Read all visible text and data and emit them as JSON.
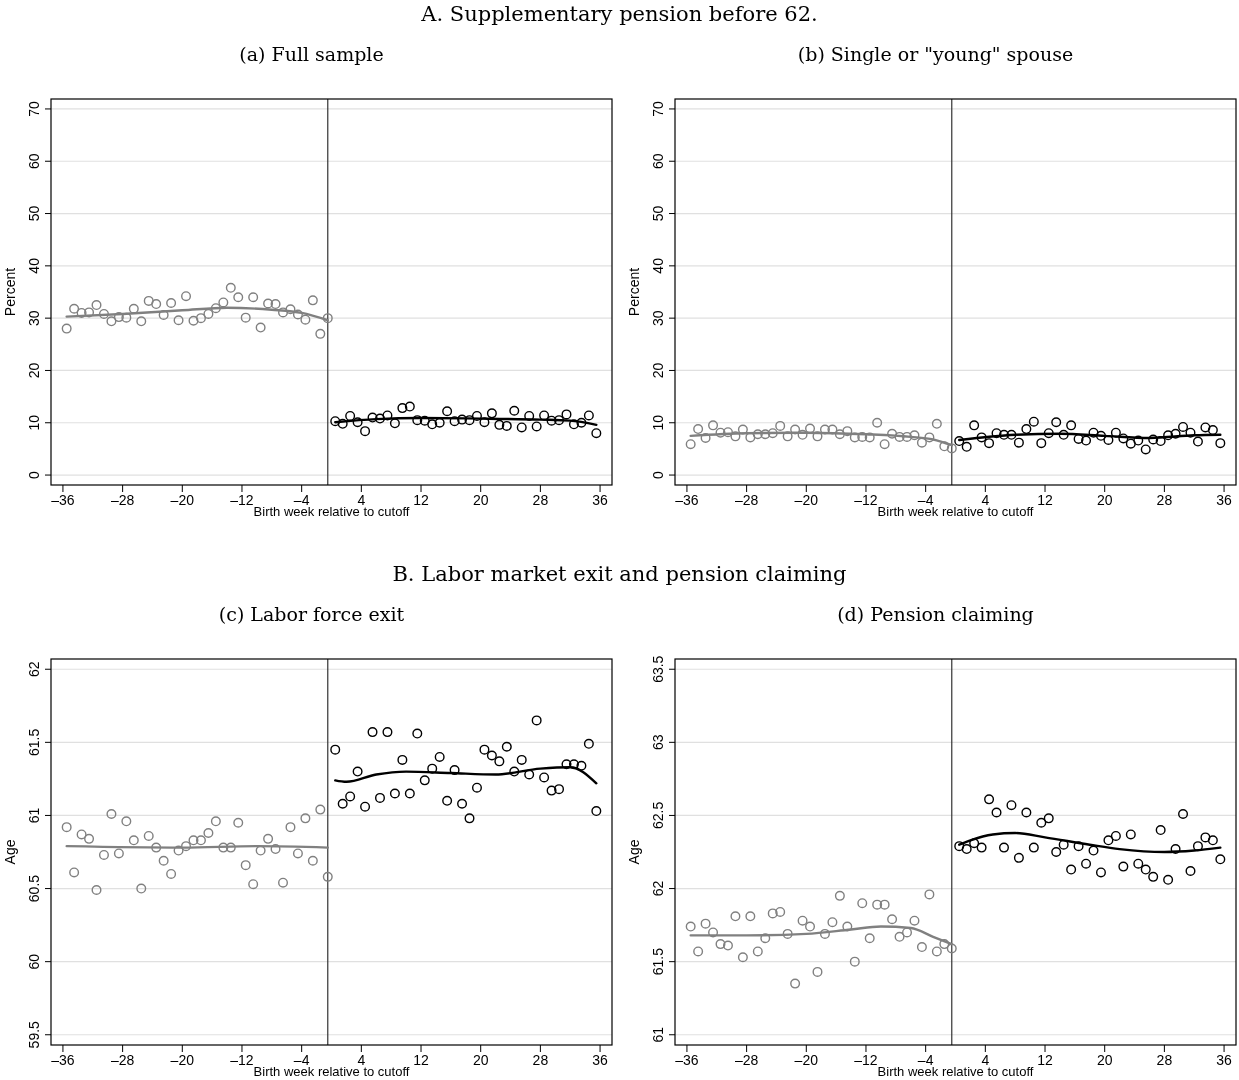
{
  "chart_data": [
    {
      "type": "scatter",
      "title": "A. Supplementary pension before 62.",
      "subtitle": "(a) Full sample",
      "xlabel": "Birth week relative to cutoff",
      "ylabel": "Percent",
      "xlim": [
        -37.6,
        37.6
      ],
      "ylim": [
        -1.9,
        71.9
      ],
      "xticks": [
        {
          "value": -36,
          "label": "–36"
        },
        {
          "value": -28,
          "label": "–28"
        },
        {
          "value": -20,
          "label": "–20"
        },
        {
          "value": -12,
          "label": "–12"
        },
        {
          "value": -4,
          "label": "–4"
        },
        4,
        12,
        20,
        28,
        36
      ],
      "yticks": [
        0,
        10,
        20,
        30,
        40,
        50,
        60,
        70
      ],
      "grid": "y",
      "marker": "circle",
      "ref_lines": [
        {
          "axis": "x",
          "value": -0.5,
          "color": "#333333"
        }
      ],
      "series": [
        {
          "type": "scatter",
          "color": "#808080",
          "x": [
            -35.5,
            -34.5,
            -33.5,
            -32.5,
            -31.5,
            -30.5,
            -29.5,
            -28.5,
            -27.5,
            -26.5,
            -25.5,
            -24.5,
            -23.5,
            -22.5,
            -21.5,
            -20.5,
            -19.5,
            -18.5,
            -17.5,
            -16.5,
            -15.5,
            -14.5,
            -13.5,
            -12.5,
            -11.5,
            -10.5,
            -9.5,
            -8.5,
            -7.5,
            -6.5,
            -5.5,
            -4.5,
            -3.5,
            -2.5,
            -1.5,
            -0.5
          ],
          "values": [
            28,
            31.8,
            31,
            31.1,
            32.5,
            30.8,
            29.4,
            30.2,
            30.1,
            31.8,
            29.4,
            33.3,
            32.7,
            30.6,
            32.9,
            29.6,
            34.2,
            29.5,
            30,
            30.8,
            31.9,
            33,
            35.8,
            34,
            30.1,
            34,
            28.2,
            32.8,
            32.7,
            31.1,
            31.7,
            30.7,
            29.7,
            33.4,
            27,
            30
          ]
        },
        {
          "color": "#000000",
          "x": [
            0.5,
            1.5,
            2.5,
            3.5,
            4.5,
            5.5,
            6.5,
            7.5,
            8.5,
            9.5,
            10.5,
            11.5,
            12.5,
            13.5,
            14.5,
            15.5,
            16.5,
            17.5,
            18.5,
            19.5,
            20.5,
            21.5,
            22.5,
            23.5,
            24.5,
            25.5,
            26.5,
            27.5,
            28.5,
            29.5,
            30.5,
            31.5,
            32.5,
            33.5,
            34.5,
            35.5
          ],
          "values": [
            10.3,
            9.8,
            11.3,
            10.1,
            8.4,
            11,
            10.8,
            11.4,
            9.9,
            12.8,
            13.1,
            10.5,
            10.4,
            9.7,
            10,
            12.2,
            10.3,
            10.6,
            10.5,
            11.3,
            10.1,
            11.8,
            9.6,
            9.4,
            12.3,
            9.1,
            11.3,
            9.3,
            11.4,
            10.4,
            10.5,
            11.6,
            9.7,
            10,
            11.4,
            8
          ]
        },
        {
          "type": "line",
          "marker": "none",
          "color": "#808080",
          "x": [
            -35.5,
            -28,
            -20,
            -14,
            -8,
            -4,
            -0.5
          ],
          "values": [
            30.3,
            30.8,
            31.5,
            32,
            31.6,
            31,
            29.6
          ]
        },
        {
          "type": "line",
          "marker": "none",
          "color": "#000000",
          "x": [
            0.5,
            6,
            12,
            20,
            28,
            32,
            35.5
          ],
          "values": [
            10.1,
            10.7,
            10.9,
            10.8,
            10.6,
            10.4,
            9.6
          ]
        }
      ]
    },
    {
      "type": "scatter",
      "subtitle": "(b) Single or \"young\" spouse",
      "xlabel": "Birth week relative to cutoff",
      "ylabel": "Percent",
      "xlim": [
        -37.6,
        37.6
      ],
      "ylim": [
        -1.9,
        71.9
      ],
      "xticks": [
        {
          "value": -36,
          "label": "–36"
        },
        {
          "value": -28,
          "label": "–28"
        },
        {
          "value": -20,
          "label": "–20"
        },
        {
          "value": -12,
          "label": "–12"
        },
        {
          "value": -4,
          "label": "–4"
        },
        4,
        12,
        20,
        28,
        36
      ],
      "yticks": [
        0,
        10,
        20,
        30,
        40,
        50,
        60,
        70
      ],
      "grid": "y",
      "marker": "circle",
      "ref_lines": [
        {
          "axis": "x",
          "value": -0.5,
          "color": "#333333"
        }
      ],
      "series": [
        {
          "type": "scatter",
          "color": "#808080",
          "x": [
            -35.5,
            -34.5,
            -33.5,
            -32.5,
            -31.5,
            -30.5,
            -29.5,
            -28.5,
            -27.5,
            -26.5,
            -25.5,
            -24.5,
            -23.5,
            -22.5,
            -21.5,
            -20.5,
            -19.5,
            -18.5,
            -17.5,
            -16.5,
            -15.5,
            -14.5,
            -13.5,
            -12.5,
            -11.5,
            -10.5,
            -9.5,
            -8.5,
            -7.5,
            -6.5,
            -5.5,
            -4.5,
            -3.5,
            -2.5,
            -1.5,
            -0.5
          ],
          "values": [
            5.9,
            8.8,
            7.1,
            9.5,
            8.1,
            8.2,
            7.4,
            8.7,
            7.2,
            7.8,
            7.8,
            8,
            9.4,
            7.4,
            8.7,
            7.7,
            8.9,
            7.4,
            8.7,
            8.7,
            7.8,
            8.4,
            7.2,
            7.3,
            7.2,
            10,
            5.9,
            7.9,
            7.3,
            7.3,
            7.6,
            6.2,
            7.2,
            9.8,
            5.5,
            5.1
          ]
        },
        {
          "color": "#000000",
          "x": [
            0.5,
            1.5,
            2.5,
            3.5,
            4.5,
            5.5,
            6.5,
            7.5,
            8.5,
            9.5,
            10.5,
            11.5,
            12.5,
            13.5,
            14.5,
            15.5,
            16.5,
            17.5,
            18.5,
            19.5,
            20.5,
            21.5,
            22.5,
            23.5,
            24.5,
            25.5,
            26.5,
            27.5,
            28.5,
            29.5,
            30.5,
            31.5,
            32.5,
            33.5,
            34.5,
            35.5
          ],
          "values": [
            6.5,
            5.4,
            9.5,
            7.2,
            6.1,
            8,
            7.7,
            7.7,
            6.2,
            8.8,
            10.2,
            6.1,
            8,
            10.1,
            7.7,
            9.5,
            6.9,
            6.6,
            8.1,
            7.5,
            6.7,
            8.1,
            7,
            6,
            6.6,
            4.9,
            6.8,
            6.5,
            7.6,
            7.9,
            9.2,
            8.1,
            6.4,
            9.1,
            8.6,
            6.1
          ]
        },
        {
          "type": "line",
          "marker": "none",
          "color": "#808080",
          "x": [
            -35.5,
            -28,
            -20,
            -12,
            -6,
            -3,
            -0.5
          ],
          "values": [
            7.5,
            8,
            8.1,
            7.8,
            7.3,
            6.8,
            5.7
          ]
        },
        {
          "type": "line",
          "marker": "none",
          "color": "#000000",
          "x": [
            0.5,
            8,
            14,
            20,
            26,
            32,
            35.5
          ],
          "values": [
            6.7,
            7.7,
            7.9,
            7.5,
            7.1,
            7.6,
            7.7
          ]
        }
      ]
    },
    {
      "type": "scatter",
      "title": "B. Labor market exit and pension claiming",
      "subtitle": "(c) Labor force exit",
      "xlabel": "Birth week relative to cutoff",
      "ylabel": "Age",
      "xlim": [
        -37.6,
        37.6
      ],
      "ylim": [
        59.43,
        62.07
      ],
      "xticks": [
        {
          "value": -36,
          "label": "–36"
        },
        {
          "value": -28,
          "label": "–28"
        },
        {
          "value": -20,
          "label": "–20"
        },
        {
          "value": -12,
          "label": "–12"
        },
        {
          "value": -4,
          "label": "–4"
        },
        4,
        12,
        20,
        28,
        36
      ],
      "yticks": [
        59.5,
        60,
        60.5,
        61,
        61.5,
        62
      ],
      "grid": "y",
      "marker": "circle",
      "ref_lines": [
        {
          "axis": "x",
          "value": -0.5,
          "color": "#333333"
        }
      ],
      "series": [
        {
          "type": "scatter",
          "color": "#808080",
          "x": [
            -35.5,
            -34.5,
            -33.5,
            -32.5,
            -31.5,
            -30.5,
            -29.5,
            -28.5,
            -27.5,
            -26.5,
            -25.5,
            -24.5,
            -23.5,
            -22.5,
            -21.5,
            -20.5,
            -19.5,
            -18.5,
            -17.5,
            -16.5,
            -15.5,
            -14.5,
            -13.5,
            -12.5,
            -11.5,
            -10.5,
            -9.5,
            -8.5,
            -7.5,
            -6.5,
            -5.5,
            -4.5,
            -3.5,
            -2.5,
            -1.5,
            -0.5
          ],
          "values": [
            60.92,
            60.61,
            60.87,
            60.84,
            60.49,
            60.73,
            61.01,
            60.74,
            60.96,
            60.83,
            60.5,
            60.86,
            60.78,
            60.69,
            60.6,
            60.76,
            60.79,
            60.83,
            60.83,
            60.88,
            60.96,
            60.78,
            60.78,
            60.95,
            60.66,
            60.53,
            60.76,
            60.84,
            60.77,
            60.54,
            60.92,
            60.74,
            60.98,
            60.69,
            61.04,
            60.58
          ]
        },
        {
          "color": "#000000",
          "x": [
            0.5,
            1.5,
            2.5,
            3.5,
            4.5,
            5.5,
            6.5,
            7.5,
            8.5,
            9.5,
            10.5,
            11.5,
            12.5,
            13.5,
            14.5,
            15.5,
            16.5,
            17.5,
            18.5,
            19.5,
            20.5,
            21.5,
            22.5,
            23.5,
            24.5,
            25.5,
            26.5,
            27.5,
            28.5,
            29.5,
            30.5,
            31.5,
            32.5,
            33.5,
            34.5,
            35.5
          ],
          "values": [
            61.45,
            61.08,
            61.13,
            61.3,
            61.06,
            61.57,
            61.12,
            61.57,
            61.15,
            61.38,
            61.15,
            61.56,
            61.24,
            61.32,
            61.4,
            61.1,
            61.31,
            61.08,
            60.98,
            61.19,
            61.45,
            61.41,
            61.37,
            61.47,
            61.3,
            61.38,
            61.28,
            61.65,
            61.26,
            61.17,
            61.18,
            61.35,
            61.35,
            61.34,
            61.49,
            61.03
          ]
        },
        {
          "type": "line",
          "marker": "none",
          "color": "#808080",
          "x": [
            -35.5,
            -20,
            -10,
            -0.5
          ],
          "values": [
            60.79,
            60.78,
            60.79,
            60.78
          ]
        },
        {
          "type": "line",
          "marker": "none",
          "color": "#000000",
          "x": [
            0.5,
            2,
            6,
            10,
            16,
            22,
            28,
            32,
            35.5
          ],
          "values": [
            61.24,
            61.23,
            61.28,
            61.3,
            61.29,
            61.28,
            61.32,
            61.33,
            61.22
          ]
        }
      ]
    },
    {
      "type": "scatter",
      "subtitle": "(d) Pension claiming",
      "xlabel": "Birth week relative to cutoff",
      "ylabel": "Age",
      "xlim": [
        -37.6,
        37.6
      ],
      "ylim": [
        60.93,
        63.57
      ],
      "xticks": [
        {
          "value": -36,
          "label": "–36"
        },
        {
          "value": -28,
          "label": "–28"
        },
        {
          "value": -20,
          "label": "–20"
        },
        {
          "value": -12,
          "label": "–12"
        },
        {
          "value": -4,
          "label": "–4"
        },
        4,
        12,
        20,
        28,
        36
      ],
      "yticks": [
        61,
        61.5,
        62,
        62.5,
        63,
        63.5
      ],
      "grid": "y",
      "marker": "circle",
      "ref_lines": [
        {
          "axis": "x",
          "value": -0.5,
          "color": "#333333"
        }
      ],
      "series": [
        {
          "type": "scatter",
          "color": "#808080",
          "x": [
            -35.5,
            -34.5,
            -33.5,
            -32.5,
            -31.5,
            -30.5,
            -29.5,
            -28.5,
            -27.5,
            -26.5,
            -25.5,
            -24.5,
            -23.5,
            -22.5,
            -21.5,
            -20.5,
            -19.5,
            -18.5,
            -17.5,
            -16.5,
            -15.5,
            -14.5,
            -13.5,
            -12.5,
            -11.5,
            -10.5,
            -9.5,
            -8.5,
            -7.5,
            -6.5,
            -5.5,
            -4.5,
            -3.5,
            -2.5,
            -1.5,
            -0.5
          ],
          "values": [
            61.74,
            61.57,
            61.76,
            61.7,
            61.62,
            61.61,
            61.81,
            61.53,
            61.81,
            61.57,
            61.66,
            61.83,
            61.84,
            61.69,
            61.35,
            61.78,
            61.74,
            61.43,
            61.69,
            61.77,
            61.95,
            61.74,
            61.5,
            61.9,
            61.66,
            61.89,
            61.89,
            61.79,
            61.67,
            61.7,
            61.78,
            61.6,
            61.96,
            61.57,
            61.62,
            61.59
          ]
        },
        {
          "color": "#000000",
          "x": [
            0.5,
            1.5,
            2.5,
            3.5,
            4.5,
            5.5,
            6.5,
            7.5,
            8.5,
            9.5,
            10.5,
            11.5,
            12.5,
            13.5,
            14.5,
            15.5,
            16.5,
            17.5,
            18.5,
            19.5,
            20.5,
            21.5,
            22.5,
            23.5,
            24.5,
            25.5,
            26.5,
            27.5,
            28.5,
            29.5,
            30.5,
            31.5,
            32.5,
            33.5,
            34.5,
            35.5
          ],
          "values": [
            62.29,
            62.27,
            62.31,
            62.28,
            62.61,
            62.52,
            62.28,
            62.57,
            62.21,
            62.52,
            62.28,
            62.45,
            62.48,
            62.25,
            62.3,
            62.13,
            62.29,
            62.17,
            62.26,
            62.11,
            62.33,
            62.36,
            62.15,
            62.37,
            62.17,
            62.13,
            62.08,
            62.4,
            62.06,
            62.27,
            62.51,
            62.12,
            62.29,
            62.35,
            62.33,
            62.2
          ]
        },
        {
          "type": "line",
          "marker": "none",
          "color": "#808080",
          "x": [
            -35.5,
            -28,
            -20,
            -14,
            -10,
            -6,
            -3,
            -0.5
          ],
          "values": [
            61.68,
            61.68,
            61.69,
            61.72,
            61.74,
            61.73,
            61.67,
            61.62
          ]
        },
        {
          "type": "line",
          "marker": "none",
          "color": "#000000",
          "x": [
            0.5,
            2,
            5,
            8,
            12,
            18,
            22,
            28,
            32,
            35.5
          ],
          "values": [
            62.3,
            62.33,
            62.37,
            62.38,
            62.35,
            62.3,
            62.27,
            62.25,
            62.26,
            62.28
          ]
        }
      ]
    }
  ]
}
